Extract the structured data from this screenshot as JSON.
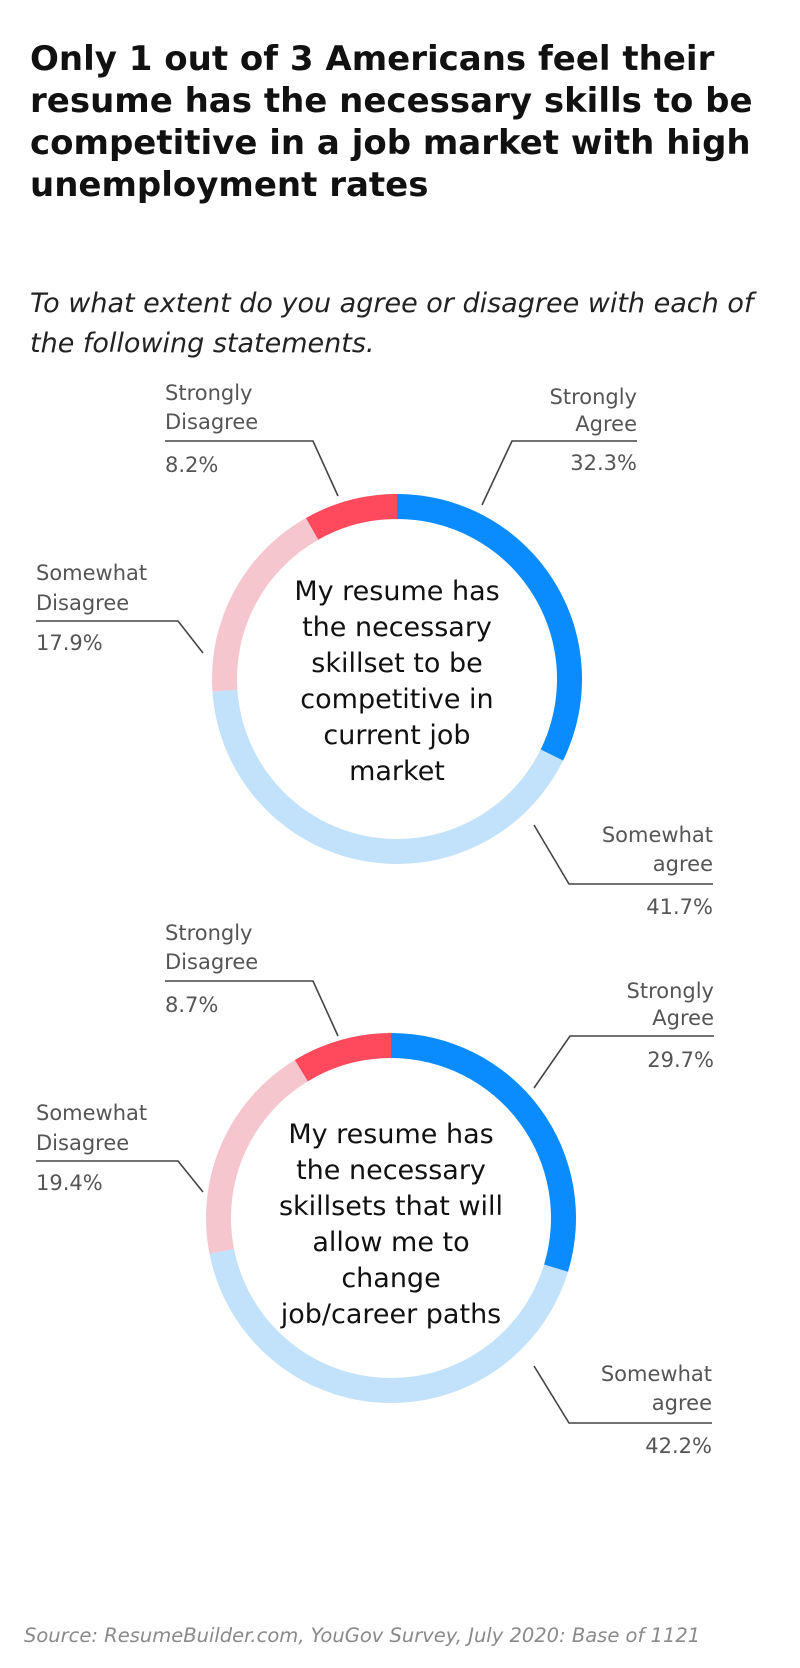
{
  "title": "Only 1 out of 3 Americans feel their resume has the necessary skills to be competitive in a job market with high unemployment rates",
  "subtitle": "To what extent do you agree or disagree with each of the following statements.",
  "source": "Source: ResumeBuilder.com, YouGov Survey, July 2020: Base of 1121",
  "colors": {
    "strongly_agree": "#0a8cff",
    "somewhat_agree": "#c2e1fb",
    "somewhat_disagree": "#f6c6ce",
    "strongly_disagree": "#ff4a5e"
  },
  "chart_data": [
    {
      "type": "pie",
      "donut": true,
      "center_text": [
        "My resume has",
        "the necessary",
        "skillset to be",
        "competitive in",
        "current job",
        "market"
      ],
      "slices": [
        {
          "key": "strongly_agree",
          "label_lines": [
            "Strongly",
            "Agree"
          ],
          "value": 32.3,
          "value_label": "32.3%"
        },
        {
          "key": "somewhat_agree",
          "label_lines": [
            "Somewhat",
            "agree"
          ],
          "value": 41.7,
          "value_label": "41.7%"
        },
        {
          "key": "somewhat_disagree",
          "label_lines": [
            "Somewhat",
            "Disagree"
          ],
          "value": 17.9,
          "value_label": "17.9%"
        },
        {
          "key": "strongly_disagree",
          "label_lines": [
            "Strongly",
            "Disagree"
          ],
          "value": 8.2,
          "value_label": "8.2%"
        }
      ]
    },
    {
      "type": "pie",
      "donut": true,
      "center_text": [
        "My resume has",
        "the necessary",
        "skillsets that will",
        "allow me to",
        "change",
        "job/career paths"
      ],
      "slices": [
        {
          "key": "strongly_agree",
          "label_lines": [
            "Strongly",
            "Agree"
          ],
          "value": 29.7,
          "value_label": "29.7%"
        },
        {
          "key": "somewhat_agree",
          "label_lines": [
            "Somewhat",
            "agree"
          ],
          "value": 42.2,
          "value_label": "42.2%"
        },
        {
          "key": "somewhat_disagree",
          "label_lines": [
            "Somewhat",
            "Disagree"
          ],
          "value": 19.4,
          "value_label": "19.4%"
        },
        {
          "key": "strongly_disagree",
          "label_lines": [
            "Strongly",
            "Disagree"
          ],
          "value": 8.7,
          "value_label": "8.7%"
        }
      ]
    }
  ]
}
